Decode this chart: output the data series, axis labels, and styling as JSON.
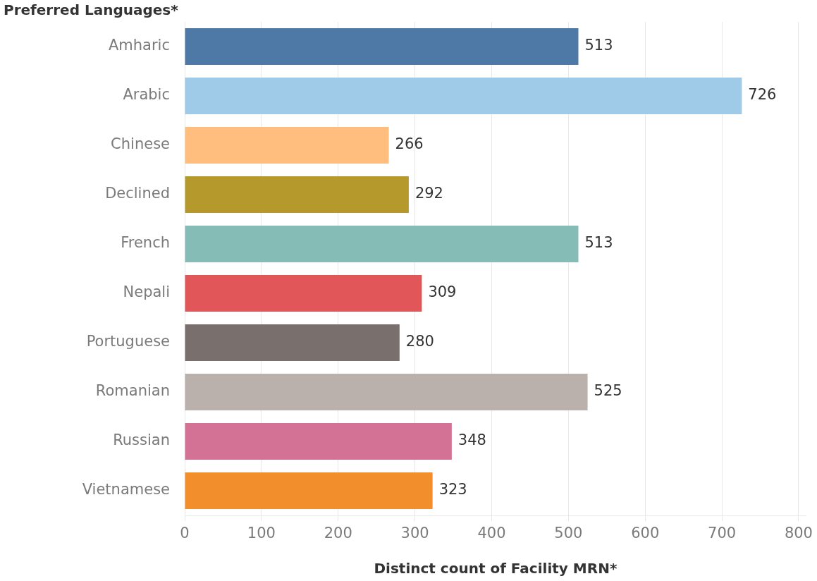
{
  "chart_data": {
    "type": "bar",
    "orientation": "horizontal",
    "ylabel": "Preferred Languages*",
    "xlabel": "Distinct count of Facility MRN*",
    "categories": [
      "Amharic",
      "Arabic",
      "Chinese",
      "Declined",
      "French",
      "Nepali",
      "Portuguese",
      "Romanian",
      "Russian",
      "Vietnamese"
    ],
    "values": [
      513,
      726,
      266,
      292,
      513,
      309,
      280,
      525,
      348,
      323
    ],
    "colors": [
      "#4e79a7",
      "#a0cbe8",
      "#ffbe7d",
      "#b6992d",
      "#86bcb6",
      "#e15759",
      "#79706e",
      "#bab0ac",
      "#d37295",
      "#f28e2b"
    ],
    "xlim": [
      0,
      810
    ],
    "xticks": [
      0,
      100,
      200,
      300,
      400,
      500,
      600,
      700,
      800
    ],
    "grid": "x",
    "data_labels": true
  }
}
